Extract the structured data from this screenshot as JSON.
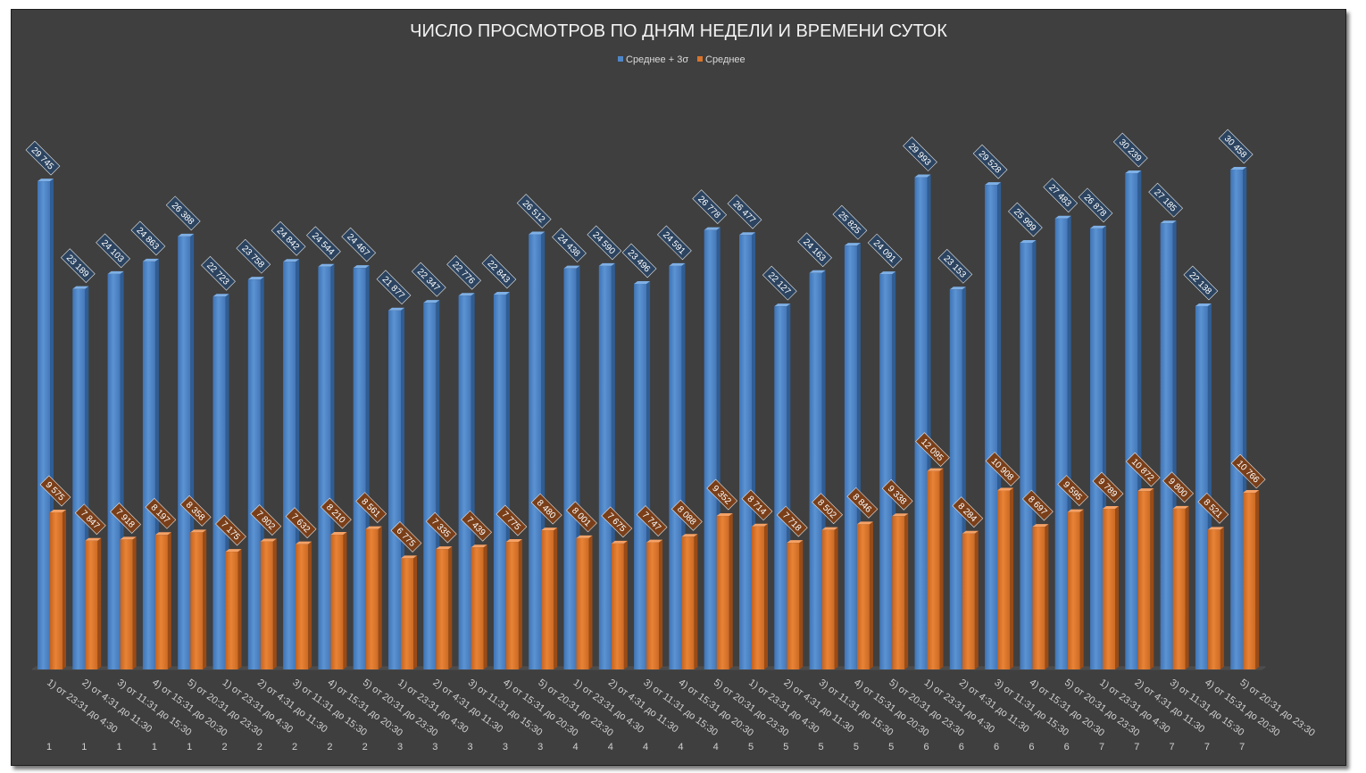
{
  "chart_data": {
    "type": "bar",
    "title": "ЧИСЛО ПРОСМОТРОВ ПО ДНЯМ НЕДЕЛИ И ВРЕМЕНИ СУТОК",
    "legend_position": "top",
    "series": [
      {
        "name": "Среднее + 3σ",
        "color": "#4f86c6",
        "values": [
          29745,
          23189,
          24103,
          24863,
          26388,
          22723,
          23758,
          24842,
          24544,
          24467,
          21877,
          22347,
          22776,
          22843,
          26512,
          24438,
          24590,
          23496,
          24591,
          26778,
          26477,
          22127,
          24163,
          25825,
          24091,
          29993,
          23153,
          29528,
          25999,
          27483,
          26878,
          30239,
          27185,
          22138,
          30458
        ],
        "labels": [
          "29 745",
          "23 189",
          "24 103",
          "24 863",
          "26 388",
          "22 723",
          "23 758",
          "24 842",
          "24 544",
          "24 467",
          "21 877",
          "22 347",
          "22 776",
          "22 843",
          "26 512",
          "24 438",
          "24 590",
          "23 496",
          "24 591",
          "26 778",
          "26 477",
          "22 127",
          "24 163",
          "25 825",
          "24 091",
          "29 993",
          "23 153",
          "29 528",
          "25 999",
          "27 483",
          "26 878",
          "30 239",
          "27 185",
          "22 138",
          "30 458"
        ]
      },
      {
        "name": "Среднее",
        "color": "#d8742c",
        "values": [
          9575,
          7847,
          7918,
          8197,
          8358,
          7175,
          7802,
          7632,
          8210,
          8561,
          6775,
          7335,
          7439,
          7775,
          8480,
          8001,
          7675,
          7747,
          8088,
          9352,
          8714,
          7718,
          8502,
          8846,
          9338,
          12095,
          8284,
          10908,
          8697,
          9595,
          9789,
          10872,
          9800,
          8521,
          10766
        ],
        "labels": [
          "9 575",
          "7 847",
          "7 918",
          "8 197",
          "8 358",
          "7 175",
          "7 802",
          "7 632",
          "8 210",
          "8 561",
          "6 775",
          "7 335",
          "7 439",
          "7 775",
          "8 480",
          "8 001",
          "7 675",
          "7 747",
          "8 088",
          "9 352",
          "8 714",
          "7 718",
          "8 502",
          "8 846",
          "9 338",
          "12 095",
          "8 284",
          "10 908",
          "8 697",
          "9 595",
          "9 789",
          "10 872",
          "9 800",
          "8 521",
          "10 766"
        ]
      }
    ],
    "categories": [
      "1) от 23:31 до 4:30",
      "2) от 4:31 до 11:30",
      "3) от 11:31 до 15:30",
      "4) от 15:31 до 20:30",
      "5) от 20:31 до 23:30",
      "1) от 23:31 до 4:30",
      "2) от 4:31 до 11:30",
      "3) от 11:31 до 15:30",
      "4) от 15:31 до 20:30",
      "5) от 20:31 до 23:30",
      "1) от 23:31 до 4:30",
      "2) от 4:31 до 11:30",
      "3) от 11:31 до 15:30",
      "4) от 15:31 до 20:30",
      "5) от 20:31 до 23:30",
      "1) от 23:31 до 4:30",
      "2) от 4:31 до 11:30",
      "3) от 11:31 до 15:30",
      "4) от 15:31 до 20:30",
      "5) от 20:31 до 23:30",
      "1) от 23:31 до 4:30",
      "2) от 4:31 до 11:30",
      "3) от 11:31 до 15:30",
      "4) от 15:31 до 20:30",
      "5) от 20:31 до 23:30",
      "1) от 23:31 до 4:30",
      "2) от 4:31 до 11:30",
      "3) от 11:31 до 15:30",
      "4) от 15:31 до 20:30",
      "5) от 20:31 до 23:30",
      "1) от 23:31 до 4:30",
      "2) от 4:31 до 11:30",
      "3) от 11:31 до 15:30",
      "4) от 15:31 до 20:30",
      "5) от 20:31 до 23:30"
    ],
    "groups": [
      "1",
      "1",
      "1",
      "1",
      "1",
      "2",
      "2",
      "2",
      "2",
      "2",
      "3",
      "3",
      "3",
      "3",
      "3",
      "4",
      "4",
      "4",
      "4",
      "4",
      "5",
      "5",
      "5",
      "5",
      "5",
      "6",
      "6",
      "6",
      "6",
      "6",
      "7",
      "7",
      "7",
      "7",
      "7"
    ],
    "ylim": [
      0,
      34000
    ],
    "grid": false
  }
}
